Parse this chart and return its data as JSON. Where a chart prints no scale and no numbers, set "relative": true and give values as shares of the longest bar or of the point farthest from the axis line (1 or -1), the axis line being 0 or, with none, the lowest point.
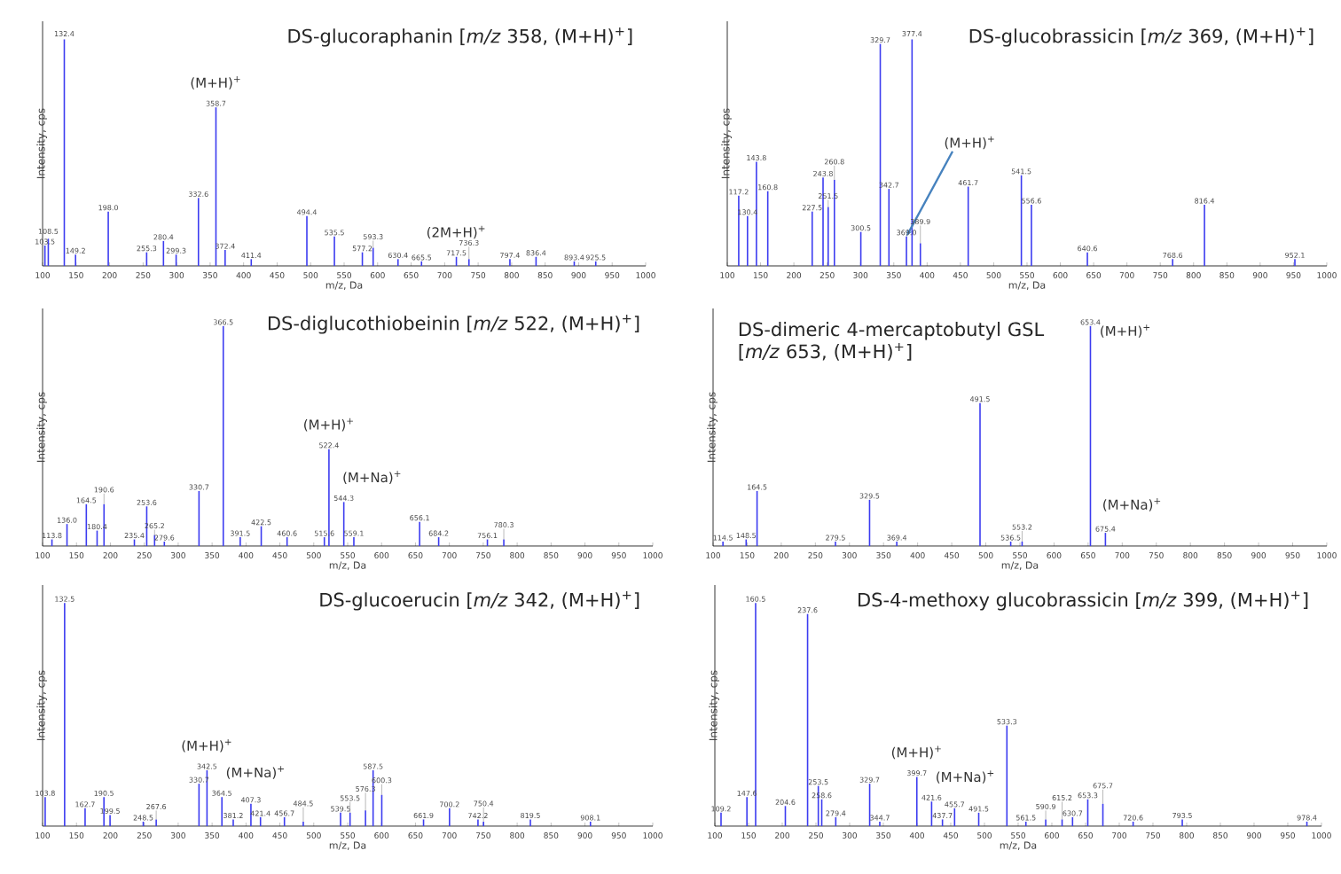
{
  "chart_data": [
    {
      "type": "bar",
      "title": "DS-glucoraphanin [*m/z* 358, (M+H)$^{+}$]",
      "xlabel": "m/z, Da",
      "ylabel": "Intensity, cps",
      "relative": true,
      "color": "#3c3cf0",
      "xlim": [
        100,
        1000
      ],
      "xticks": [
        100,
        150,
        200,
        250,
        300,
        350,
        400,
        450,
        500,
        550,
        600,
        650,
        700,
        750,
        800,
        850,
        900,
        950,
        1000
      ],
      "x": [
        103.5,
        108.5,
        132.4,
        149.2,
        198.0,
        255.3,
        280.4,
        299.3,
        332.6,
        358.7,
        372.4,
        411.4,
        494.4,
        535.5,
        577.2,
        593.3,
        630.4,
        665.5,
        717.5,
        736.3,
        797.4,
        836.4,
        893.4,
        925.5
      ],
      "values": [
        0.09,
        0.12,
        1.0,
        0.05,
        0.24,
        0.06,
        0.11,
        0.05,
        0.3,
        0.7,
        0.07,
        0.03,
        0.22,
        0.13,
        0.06,
        0.08,
        0.03,
        0.02,
        0.04,
        0.03,
        0.03,
        0.04,
        0.02,
        0.02
      ],
      "annotations": [
        {
          "text": "(M+H)$^{+}$",
          "x": 358.7,
          "y": 0.7
        },
        {
          "text": "(2M+H)$^{+}$",
          "x": 717.5,
          "y": 0.04
        },
        {
          "text": "103.5",
          "x": 103.5,
          "y": 0.09
        },
        {
          "text": "108.5",
          "x": 108.5,
          "y": 0.12
        },
        {
          "text": "132.4",
          "x": 132.4,
          "y": 1.0
        },
        {
          "text": "149.2",
          "x": 149.2,
          "y": 0.05
        },
        {
          "text": "198.0",
          "x": 198.0,
          "y": 0.24
        },
        {
          "text": "255.3",
          "x": 255.3,
          "y": 0.06
        },
        {
          "text": "280.4",
          "x": 280.4,
          "y": 0.11
        },
        {
          "text": "299.3",
          "x": 299.3,
          "y": 0.05
        },
        {
          "text": "332.6",
          "x": 332.6,
          "y": 0.3
        },
        {
          "text": "358.7",
          "x": 358.7,
          "y": 0.7
        },
        {
          "text": "372.4",
          "x": 372.4,
          "y": 0.07
        },
        {
          "text": "411.4",
          "x": 411.4,
          "y": 0.03
        },
        {
          "text": "494.4",
          "x": 494.4,
          "y": 0.22
        },
        {
          "text": "535.5",
          "x": 535.5,
          "y": 0.13
        },
        {
          "text": "577.2",
          "x": 577.2,
          "y": 0.06
        },
        {
          "text": "593.3",
          "x": 593.3,
          "y": 0.08
        },
        {
          "text": "630.4",
          "x": 630.4,
          "y": 0.03
        },
        {
          "text": "665.5",
          "x": 665.5,
          "y": 0.02
        },
        {
          "text": "717.5",
          "x": 717.5,
          "y": 0.04
        },
        {
          "text": "736.3",
          "x": 736.3,
          "y": 0.03
        },
        {
          "text": "797.4",
          "x": 797.4,
          "y": 0.03
        },
        {
          "text": "836.4",
          "x": 836.4,
          "y": 0.04
        },
        {
          "text": "893.4",
          "x": 893.4,
          "y": 0.02
        },
        {
          "text": "925.5",
          "x": 925.5,
          "y": 0.02
        }
      ]
    },
    {
      "type": "bar",
      "title": "DS-glucobrassicin [*m/z* 369, (M+H)$^{+}$]",
      "xlabel": "m/z, Da",
      "ylabel": "Intensity, cps",
      "relative": true,
      "color": "#3c3cf0",
      "xlim": [
        100,
        1000
      ],
      "xticks": [
        100,
        150,
        200,
        250,
        300,
        350,
        400,
        450,
        500,
        550,
        600,
        650,
        700,
        750,
        800,
        850,
        900,
        950,
        1000
      ],
      "x": [
        117.2,
        130.4,
        143.8,
        160.8,
        227.5,
        243.8,
        251.5,
        260.8,
        300.5,
        329.7,
        342.7,
        369.0,
        377.4,
        389.9,
        461.7,
        541.5,
        556.6,
        640.6,
        768.6,
        816.4,
        952.1
      ],
      "values": [
        0.31,
        0.22,
        0.46,
        0.33,
        0.24,
        0.39,
        0.26,
        0.38,
        0.15,
        0.98,
        0.34,
        0.13,
        1.0,
        0.1,
        0.35,
        0.4,
        0.27,
        0.06,
        0.03,
        0.27,
        0.03
      ],
      "annotations": [
        {
          "text": "(M+H)$^{+}$",
          "x": 369.0,
          "y": 0.13
        },
        {
          "text": "117.2",
          "x": 117.2,
          "y": 0.31
        },
        {
          "text": "130.4",
          "x": 130.4,
          "y": 0.22
        },
        {
          "text": "143.8",
          "x": 143.8,
          "y": 0.46
        },
        {
          "text": "160.8",
          "x": 160.8,
          "y": 0.33
        },
        {
          "text": "227.5",
          "x": 227.5,
          "y": 0.24
        },
        {
          "text": "243.8",
          "x": 243.8,
          "y": 0.39
        },
        {
          "text": "251.5",
          "x": 251.5,
          "y": 0.26
        },
        {
          "text": "260.8",
          "x": 260.8,
          "y": 0.38
        },
        {
          "text": "300.5",
          "x": 300.5,
          "y": 0.15
        },
        {
          "text": "329.7",
          "x": 329.7,
          "y": 0.98
        },
        {
          "text": "342.7",
          "x": 342.7,
          "y": 0.34
        },
        {
          "text": "369.0",
          "x": 369.0,
          "y": 0.13
        },
        {
          "text": "377.4",
          "x": 377.4,
          "y": 1.0
        },
        {
          "text": "389.9",
          "x": 389.9,
          "y": 0.1
        },
        {
          "text": "461.7",
          "x": 461.7,
          "y": 0.35
        },
        {
          "text": "541.5",
          "x": 541.5,
          "y": 0.4
        },
        {
          "text": "556.6",
          "x": 556.6,
          "y": 0.27
        },
        {
          "text": "640.6",
          "x": 640.6,
          "y": 0.06
        },
        {
          "text": "768.6",
          "x": 768.6,
          "y": 0.03
        },
        {
          "text": "816.4",
          "x": 816.4,
          "y": 0.27
        },
        {
          "text": "952.1",
          "x": 952.1,
          "y": 0.03
        }
      ]
    },
    {
      "type": "bar",
      "title": "DS-diglucothiobeinin [*m/z* 522, (M+H)$^{+}$]",
      "xlabel": "m/z, Da",
      "ylabel": "Intensity, cps",
      "relative": true,
      "color": "#3c3cf0",
      "xlim": [
        100,
        1000
      ],
      "xticks": [
        100,
        150,
        200,
        250,
        300,
        350,
        400,
        450,
        500,
        550,
        600,
        650,
        700,
        750,
        800,
        850,
        900,
        950,
        1000
      ],
      "x": [
        113.8,
        136.0,
        164.5,
        180.4,
        190.6,
        235.4,
        253.6,
        265.2,
        279.6,
        330.7,
        366.5,
        391.5,
        422.5,
        460.6,
        515.6,
        522.4,
        544.3,
        559.1,
        656.1,
        684.2,
        756.1,
        780.3
      ],
      "values": [
        0.03,
        0.1,
        0.19,
        0.07,
        0.19,
        0.03,
        0.18,
        0.05,
        0.02,
        0.25,
        1.0,
        0.04,
        0.09,
        0.04,
        0.04,
        0.44,
        0.2,
        0.04,
        0.11,
        0.04,
        0.03,
        0.03
      ],
      "annotations": [
        {
          "text": "(M+H)$^{+}$",
          "x": 522.4,
          "y": 0.44
        },
        {
          "text": "(M+Na)$^{+}$",
          "x": 544.3,
          "y": 0.2
        },
        {
          "text": "113.8",
          "x": 113.8,
          "y": 0.03
        },
        {
          "text": "136.0",
          "x": 136.0,
          "y": 0.1
        },
        {
          "text": "164.5",
          "x": 164.5,
          "y": 0.19
        },
        {
          "text": "180.4",
          "x": 180.4,
          "y": 0.07
        },
        {
          "text": "190.6",
          "x": 190.6,
          "y": 0.19
        },
        {
          "text": "235.4",
          "x": 235.4,
          "y": 0.03
        },
        {
          "text": "253.6",
          "x": 253.6,
          "y": 0.18
        },
        {
          "text": "265.2",
          "x": 265.2,
          "y": 0.05
        },
        {
          "text": "279.6",
          "x": 279.6,
          "y": 0.02
        },
        {
          "text": "330.7",
          "x": 330.7,
          "y": 0.25
        },
        {
          "text": "366.5",
          "x": 366.5,
          "y": 1.0
        },
        {
          "text": "391.5",
          "x": 391.5,
          "y": 0.04
        },
        {
          "text": "422.5",
          "x": 422.5,
          "y": 0.09
        },
        {
          "text": "460.6",
          "x": 460.6,
          "y": 0.04
        },
        {
          "text": "515.6",
          "x": 515.6,
          "y": 0.04
        },
        {
          "text": "522.4",
          "x": 522.4,
          "y": 0.44
        },
        {
          "text": "544.3",
          "x": 544.3,
          "y": 0.2
        },
        {
          "text": "559.1",
          "x": 559.1,
          "y": 0.04
        },
        {
          "text": "656.1",
          "x": 656.1,
          "y": 0.11
        },
        {
          "text": "684.2",
          "x": 684.2,
          "y": 0.04
        },
        {
          "text": "756.1",
          "x": 756.1,
          "y": 0.03
        },
        {
          "text": "780.3",
          "x": 780.3,
          "y": 0.03
        }
      ]
    },
    {
      "type": "bar",
      "title": "DS-dimeric 4-mercaptobutyl GSL [*m/z* 653, (M+H)$^{+}$]",
      "xlabel": "m/z, Da",
      "ylabel": "Intensity, cps",
      "relative": true,
      "color": "#3c3cf0",
      "xlim": [
        100,
        1000
      ],
      "xticks": [
        100,
        150,
        200,
        250,
        300,
        350,
        400,
        450,
        500,
        550,
        600,
        650,
        700,
        750,
        800,
        850,
        900,
        950,
        1000
      ],
      "x": [
        114.5,
        148.5,
        164.5,
        279.5,
        329.5,
        369.4,
        491.5,
        536.5,
        553.2,
        653.4,
        675.4
      ],
      "values": [
        0.02,
        0.03,
        0.25,
        0.02,
        0.21,
        0.02,
        0.65,
        0.02,
        0.02,
        1.0,
        0.06
      ],
      "annotations": [
        {
          "text": "(M+H)$^{+}$",
          "x": 653.4,
          "y": 1.0
        },
        {
          "text": "(M+Na)$^{+}$",
          "x": 675.4,
          "y": 0.06
        },
        {
          "text": "114.5",
          "x": 114.5,
          "y": 0.02
        },
        {
          "text": "148.5",
          "x": 148.5,
          "y": 0.03
        },
        {
          "text": "164.5",
          "x": 164.5,
          "y": 0.25
        },
        {
          "text": "279.5",
          "x": 279.5,
          "y": 0.02
        },
        {
          "text": "329.5",
          "x": 329.5,
          "y": 0.21
        },
        {
          "text": "369.4",
          "x": 369.4,
          "y": 0.02
        },
        {
          "text": "491.5",
          "x": 491.5,
          "y": 0.65
        },
        {
          "text": "536.5",
          "x": 536.5,
          "y": 0.02
        },
        {
          "text": "553.2",
          "x": 553.2,
          "y": 0.02
        },
        {
          "text": "653.4",
          "x": 653.4,
          "y": 1.0
        },
        {
          "text": "675.4",
          "x": 675.4,
          "y": 0.06
        }
      ]
    },
    {
      "type": "bar",
      "title": "DS-glucoerucin [*m/z* 342, (M+H)$^{+}$]",
      "xlabel": "m/z, Da",
      "ylabel": "Intensity, cps",
      "relative": true,
      "color": "#3c3cf0",
      "xlim": [
        100,
        1000
      ],
      "xticks": [
        100,
        150,
        200,
        250,
        300,
        350,
        400,
        450,
        500,
        550,
        600,
        650,
        700,
        750,
        800,
        850,
        900,
        950,
        1000
      ],
      "x": [
        103.8,
        132.5,
        162.7,
        190.5,
        199.5,
        248.5,
        267.6,
        330.7,
        342.5,
        364.5,
        381.2,
        407.3,
        421.4,
        456.7,
        484.5,
        539.5,
        553.5,
        576.3,
        587.5,
        600.3,
        661.9,
        700.2,
        742.2,
        750.4,
        819.5,
        908.1
      ],
      "values": [
        0.13,
        1.0,
        0.08,
        0.13,
        0.05,
        0.02,
        0.03,
        0.19,
        0.25,
        0.13,
        0.03,
        0.1,
        0.04,
        0.04,
        0.02,
        0.06,
        0.06,
        0.07,
        0.25,
        0.14,
        0.03,
        0.08,
        0.03,
        0.02,
        0.03,
        0.02
      ],
      "annotations": [
        {
          "text": "(M+H)$^{+}$",
          "x": 342.5,
          "y": 0.25
        },
        {
          "text": "(M+Na)$^{+}$",
          "x": 364.5,
          "y": 0.13
        },
        {
          "text": "103.8",
          "x": 103.8,
          "y": 0.13
        },
        {
          "text": "132.5",
          "x": 132.5,
          "y": 1.0
        },
        {
          "text": "162.7",
          "x": 162.7,
          "y": 0.08
        },
        {
          "text": "190.5",
          "x": 190.5,
          "y": 0.13
        },
        {
          "text": "199.5",
          "x": 199.5,
          "y": 0.05
        },
        {
          "text": "248.5",
          "x": 248.5,
          "y": 0.02
        },
        {
          "text": "267.6",
          "x": 267.6,
          "y": 0.03
        },
        {
          "text": "330.7",
          "x": 330.7,
          "y": 0.19
        },
        {
          "text": "342.5",
          "x": 342.5,
          "y": 0.25
        },
        {
          "text": "364.5",
          "x": 364.5,
          "y": 0.13
        },
        {
          "text": "381.2",
          "x": 381.2,
          "y": 0.03
        },
        {
          "text": "407.3",
          "x": 407.3,
          "y": 0.1
        },
        {
          "text": "421.4",
          "x": 421.4,
          "y": 0.04
        },
        {
          "text": "456.7",
          "x": 456.7,
          "y": 0.04
        },
        {
          "text": "484.5",
          "x": 484.5,
          "y": 0.02
        },
        {
          "text": "539.5",
          "x": 539.5,
          "y": 0.06
        },
        {
          "text": "553.5",
          "x": 553.5,
          "y": 0.06
        },
        {
          "text": "576.3",
          "x": 576.3,
          "y": 0.07
        },
        {
          "text": "587.5",
          "x": 587.5,
          "y": 0.25
        },
        {
          "text": "600.3",
          "x": 600.3,
          "y": 0.14
        },
        {
          "text": "661.9",
          "x": 661.9,
          "y": 0.03
        },
        {
          "text": "700.2",
          "x": 700.2,
          "y": 0.08
        },
        {
          "text": "742.2",
          "x": 742.2,
          "y": 0.03
        },
        {
          "text": "750.4",
          "x": 750.4,
          "y": 0.02
        },
        {
          "text": "819.5",
          "x": 819.5,
          "y": 0.03
        },
        {
          "text": "908.1",
          "x": 908.1,
          "y": 0.02
        }
      ]
    },
    {
      "type": "bar",
      "title": "DS-4-methoxy glucobrassicin [*m/z* 399, (M+H)$^{+}$]",
      "xlabel": "m/z, Da",
      "ylabel": "Intensity, cps",
      "relative": true,
      "color": "#3c3cf0",
      "xlim": [
        100,
        1000
      ],
      "xticks": [
        100,
        150,
        200,
        250,
        300,
        350,
        400,
        450,
        500,
        550,
        600,
        650,
        700,
        750,
        800,
        850,
        900,
        950,
        1000
      ],
      "x": [
        109.2,
        147.6,
        160.5,
        204.6,
        237.6,
        253.5,
        258.6,
        279.4,
        329.7,
        344.7,
        399.7,
        421.6,
        437.7,
        455.7,
        491.5,
        533.3,
        561.5,
        590.9,
        615.2,
        630.7,
        653.3,
        675.7,
        720.6,
        793.5,
        978.4
      ],
      "values": [
        0.06,
        0.13,
        1.0,
        0.09,
        0.95,
        0.18,
        0.12,
        0.04,
        0.19,
        0.02,
        0.22,
        0.11,
        0.03,
        0.08,
        0.06,
        0.45,
        0.02,
        0.03,
        0.03,
        0.04,
        0.12,
        0.1,
        0.02,
        0.03,
        0.02
      ],
      "annotations": [
        {
          "text": "(M+H)$^{+}$",
          "x": 399.7,
          "y": 0.22
        },
        {
          "text": "(M+Na)$^{+}$",
          "x": 421.6,
          "y": 0.11
        },
        {
          "text": "109.2",
          "x": 109.2,
          "y": 0.06
        },
        {
          "text": "147.6",
          "x": 147.6,
          "y": 0.13
        },
        {
          "text": "160.5",
          "x": 160.5,
          "y": 1.0
        },
        {
          "text": "204.6",
          "x": 204.6,
          "y": 0.09
        },
        {
          "text": "237.6",
          "x": 237.6,
          "y": 0.95
        },
        {
          "text": "253.5",
          "x": 253.5,
          "y": 0.18
        },
        {
          "text": "258.6",
          "x": 258.6,
          "y": 0.12
        },
        {
          "text": "279.4",
          "x": 279.4,
          "y": 0.04
        },
        {
          "text": "329.7",
          "x": 329.7,
          "y": 0.19
        },
        {
          "text": "344.7",
          "x": 344.7,
          "y": 0.02
        },
        {
          "text": "399.7",
          "x": 399.7,
          "y": 0.22
        },
        {
          "text": "421.6",
          "x": 421.6,
          "y": 0.11
        },
        {
          "text": "437.7",
          "x": 437.7,
          "y": 0.03
        },
        {
          "text": "455.7",
          "x": 455.7,
          "y": 0.08
        },
        {
          "text": "491.5",
          "x": 491.5,
          "y": 0.06
        },
        {
          "text": "533.3",
          "x": 533.3,
          "y": 0.45
        },
        {
          "text": "561.5",
          "x": 561.5,
          "y": 0.02
        },
        {
          "text": "590.9",
          "x": 590.9,
          "y": 0.03
        },
        {
          "text": "615.2",
          "x": 615.2,
          "y": 0.03
        },
        {
          "text": "630.7",
          "x": 630.7,
          "y": 0.04
        },
        {
          "text": "653.3",
          "x": 653.3,
          "y": 0.12
        },
        {
          "text": "675.7",
          "x": 675.7,
          "y": 0.1
        },
        {
          "text": "720.6",
          "x": 720.6,
          "y": 0.02
        },
        {
          "text": "793.5",
          "x": 793.5,
          "y": 0.03
        },
        {
          "text": "978.4",
          "x": 978.4,
          "y": 0.02
        }
      ]
    }
  ]
}
